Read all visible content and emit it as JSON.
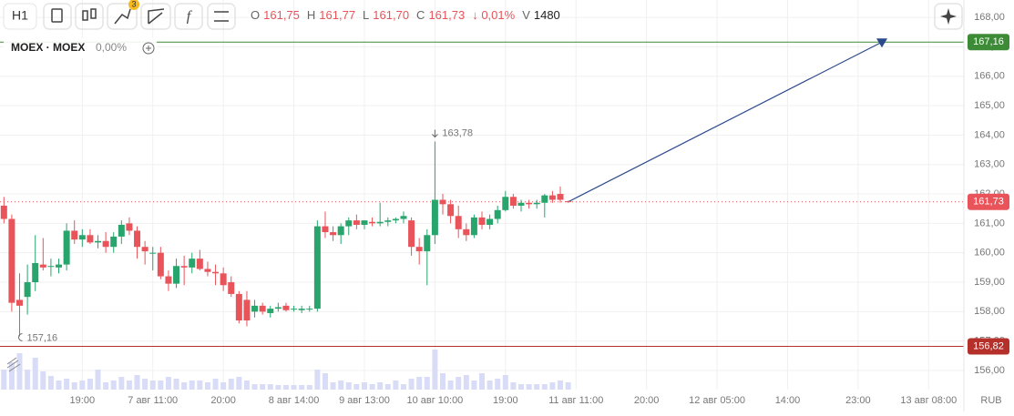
{
  "toolbar": {
    "interval": "H1",
    "badge": "3",
    "ohlc": [
      {
        "key": "O",
        "value": "161,75"
      },
      {
        "key": "H",
        "value": "161,77"
      },
      {
        "key": "L",
        "value": "161,70"
      },
      {
        "key": "C",
        "value": "161,73"
      }
    ],
    "change": "↓ 0,01%",
    "volume_key": "V",
    "volume": "1480"
  },
  "legend": {
    "symbol": "MOEX · MOEX",
    "change": "0,00%"
  },
  "currency": "RUB",
  "chart_data": {
    "type": "candlestick",
    "categories": [
      null,
      null,
      null,
      null,
      null,
      null,
      null,
      null,
      null,
      null,
      "19:00",
      null,
      null,
      null,
      null,
      null,
      null,
      null,
      null,
      "7 авг 11:00",
      null,
      null,
      null,
      null,
      null,
      null,
      null,
      null,
      "20:00",
      null,
      null,
      null,
      null,
      null,
      null,
      null,
      null,
      "8 авг 14:00",
      null,
      null,
      null,
      null,
      null,
      null,
      null,
      null,
      "9 авг 13:00",
      null,
      null,
      null,
      null,
      null,
      null,
      null,
      null,
      "10 авг 10:00",
      null,
      null,
      null,
      null,
      null,
      null,
      null,
      null,
      "19:00",
      null,
      null,
      null,
      null,
      null,
      null,
      null,
      null,
      "11 авг 11:00",
      null,
      null,
      null,
      null,
      null,
      null,
      null,
      null,
      "20:00",
      null,
      null,
      null,
      null,
      null,
      null,
      null,
      null,
      "12 авг 05:00",
      null,
      null,
      null,
      null,
      null,
      null,
      null,
      null,
      "14:00",
      null,
      null,
      null,
      null,
      null,
      null,
      null,
      null,
      "23:00",
      null,
      null,
      null,
      null,
      null,
      null,
      null,
      null,
      "13 авг 08:00",
      null,
      null,
      null,
      null
    ],
    "open": [
      161.6,
      161.15,
      158.4,
      158.5,
      159.0,
      159.6,
      159.55,
      159.5,
      159.6,
      160.75,
      160.45,
      160.6,
      160.35,
      160.4,
      160.2,
      160.55,
      161.0,
      160.75,
      160.2,
      160.0,
      160.0,
      159.2,
      158.95,
      159.55,
      159.5,
      159.8,
      159.45,
      159.35,
      159.3,
      159.0,
      158.6,
      158.4,
      158.0,
      158.2,
      157.95,
      158.1,
      158.2,
      158.1,
      158.05,
      158.1,
      158.1,
      160.9,
      160.7,
      160.6,
      160.9,
      161.1,
      160.95,
      161.05,
      161.0,
      161.05,
      161.1,
      161.15,
      161.1,
      160.2,
      160.05,
      160.6,
      161.8,
      161.65,
      161.25,
      160.8,
      160.6,
      161.2,
      160.95,
      161.15,
      161.45,
      161.9,
      161.6,
      161.7,
      161.65,
      161.7,
      161.95,
      162.0,
      161.75,
      null,
      null,
      null,
      null,
      null,
      null,
      null,
      null,
      null,
      null,
      null,
      null,
      null,
      null,
      null,
      null,
      null,
      null,
      null,
      null,
      null,
      null,
      null,
      null,
      null,
      null,
      null,
      null,
      null,
      null,
      null,
      null,
      null,
      null,
      null,
      null,
      null,
      null,
      null,
      null,
      null,
      null,
      null,
      null,
      null,
      null,
      null,
      null,
      null,
      null
    ],
    "high": [
      161.9,
      161.3,
      159.3,
      159.6,
      160.6,
      160.5,
      159.8,
      159.8,
      161.0,
      161.1,
      160.8,
      160.8,
      160.6,
      160.7,
      160.7,
      161.1,
      161.2,
      160.9,
      160.4,
      160.2,
      160.2,
      159.4,
      159.8,
      159.9,
      160.0,
      160.1,
      159.7,
      159.6,
      159.5,
      159.2,
      158.7,
      158.7,
      158.4,
      158.3,
      158.2,
      158.3,
      158.3,
      158.2,
      158.2,
      158.2,
      161.1,
      161.4,
      160.9,
      161.0,
      161.2,
      161.3,
      161.1,
      161.2,
      161.7,
      161.2,
      161.2,
      161.4,
      161.2,
      160.5,
      160.8,
      163.78,
      162.0,
      161.8,
      161.6,
      161.0,
      161.3,
      161.4,
      161.3,
      161.6,
      162.1,
      162.0,
      161.8,
      161.8,
      161.8,
      162.0,
      162.1,
      162.25,
      161.77,
      null,
      null,
      null,
      null,
      null,
      null,
      null,
      null,
      null,
      null,
      null,
      null,
      null,
      null,
      null,
      null,
      null,
      null,
      null,
      null,
      null,
      null,
      null,
      null,
      null,
      null,
      null,
      null,
      null,
      null,
      null,
      null,
      null,
      null,
      null,
      null,
      null,
      null,
      null,
      null,
      null,
      null,
      null,
      null,
      null,
      null,
      null,
      null,
      null,
      null
    ],
    "low": [
      161.0,
      158.0,
      157.16,
      157.9,
      158.7,
      159.4,
      159.2,
      159.3,
      159.4,
      160.3,
      160.2,
      160.3,
      160.15,
      160.0,
      160.0,
      160.3,
      160.6,
      159.8,
      159.6,
      159.4,
      159.1,
      158.7,
      158.8,
      158.9,
      159.3,
      159.4,
      159.2,
      158.9,
      158.7,
      158.5,
      157.6,
      157.5,
      157.8,
      157.9,
      157.8,
      158.0,
      158.0,
      158.0,
      157.95,
      158.0,
      158.0,
      160.5,
      160.4,
      160.3,
      160.6,
      160.8,
      160.8,
      160.9,
      160.9,
      160.9,
      161.0,
      161.0,
      159.9,
      159.6,
      158.9,
      160.3,
      161.3,
      161.0,
      160.5,
      160.4,
      160.5,
      160.8,
      160.8,
      161.0,
      161.4,
      161.5,
      161.4,
      161.5,
      161.5,
      161.2,
      161.7,
      161.7,
      161.7,
      null,
      null,
      null,
      null,
      null,
      null,
      null,
      null,
      null,
      null,
      null,
      null,
      null,
      null,
      null,
      null,
      null,
      null,
      null,
      null,
      null,
      null,
      null,
      null,
      null,
      null,
      null,
      null,
      null,
      null,
      null,
      null,
      null,
      null,
      null,
      null,
      null,
      null,
      null,
      null,
      null,
      null,
      null,
      null,
      null,
      null,
      null,
      null,
      null,
      null
    ],
    "close": [
      161.15,
      158.3,
      158.2,
      159.0,
      159.65,
      159.5,
      159.55,
      159.6,
      160.75,
      160.45,
      160.6,
      160.35,
      160.4,
      160.2,
      160.55,
      160.95,
      160.75,
      160.2,
      160.05,
      160.0,
      159.2,
      158.95,
      159.55,
      159.5,
      159.8,
      159.45,
      159.35,
      159.3,
      158.9,
      158.6,
      157.7,
      157.7,
      158.2,
      158.0,
      158.1,
      158.15,
      158.05,
      158.1,
      158.1,
      158.1,
      160.9,
      160.7,
      160.6,
      160.9,
      161.1,
      160.95,
      161.1,
      161.0,
      161.05,
      161.1,
      161.15,
      161.25,
      160.2,
      160.05,
      160.6,
      161.8,
      161.65,
      161.25,
      160.8,
      160.6,
      161.2,
      160.95,
      161.15,
      161.45,
      161.9,
      161.6,
      161.7,
      161.65,
      161.7,
      161.95,
      161.8,
      161.8,
      161.73,
      null,
      null,
      null,
      null,
      null,
      null,
      null,
      null,
      null,
      null,
      null,
      null,
      null,
      null,
      null,
      null,
      null,
      null,
      null,
      null,
      null,
      null,
      null,
      null,
      null,
      null,
      null,
      null,
      null,
      null,
      null,
      null,
      null,
      null,
      null,
      null,
      null,
      null,
      null,
      null,
      null,
      null,
      null,
      null,
      null,
      null,
      null,
      null,
      null,
      null
    ],
    "volume": [
      4070,
      5550,
      7400,
      4070,
      6475,
      3700,
      2775,
      1850,
      2220,
      1480,
      1850,
      2220,
      4070,
      1480,
      1850,
      2590,
      1850,
      2960,
      2220,
      1850,
      1850,
      2590,
      2220,
      1480,
      1850,
      1850,
      1480,
      2220,
      1480,
      2220,
      2590,
      1850,
      1110,
      1110,
      1110,
      925,
      925,
      925,
      925,
      925,
      4070,
      3330,
      1480,
      1850,
      1480,
      1110,
      1480,
      1110,
      1480,
      1110,
      1850,
      1110,
      2220,
      2590,
      2590,
      8140,
      3330,
      1850,
      2590,
      2960,
      1850,
      3330,
      1850,
      2220,
      2960,
      1480,
      1110,
      1110,
      1110,
      1110,
      1480,
      1850,
      1480,
      null,
      null,
      null,
      null,
      null,
      null,
      null,
      null,
      null,
      null,
      null,
      null,
      null,
      null,
      null,
      null,
      null,
      null,
      null,
      null,
      null,
      null,
      null,
      null,
      null,
      null,
      null,
      null,
      null,
      null,
      null,
      null,
      null,
      null,
      null,
      null,
      null,
      null,
      null,
      null,
      null,
      null,
      null,
      null,
      null,
      null,
      null,
      null,
      null,
      null
    ],
    "up_color": "#27a56c",
    "down_color": "#e8545a",
    "volume_color": "#d9dcf6",
    "ylim": [
      155.35,
      168.59
    ],
    "yticks": [
      {
        "value": 156,
        "label": "156,00"
      },
      {
        "value": 157,
        "label": "157,00"
      },
      {
        "value": 158,
        "label": "158,00"
      },
      {
        "value": 159,
        "label": "159,00"
      },
      {
        "value": 160,
        "label": "160,00"
      },
      {
        "value": 161,
        "label": "161,00"
      },
      {
        "value": 162,
        "label": "162,00"
      },
      {
        "value": 163,
        "label": "163,00"
      },
      {
        "value": 164,
        "label": "164,00"
      },
      {
        "value": 165,
        "label": "165,00"
      },
      {
        "value": 166,
        "label": "166,00"
      },
      {
        "value": 167,
        "label": "167,00"
      },
      {
        "value": 168,
        "label": "168,00"
      }
    ],
    "grid": true,
    "levels": [
      {
        "value": 167.16,
        "label": "167,16",
        "color": "#3d8b37"
      },
      {
        "value": 161.73,
        "label": "161,73",
        "color": "#e8545a",
        "dotted": true
      },
      {
        "value": 156.82,
        "label": "156,82",
        "color": "#b5302a"
      }
    ],
    "high_marker": {
      "value": 163.78,
      "label": "163,78"
    },
    "low_marker": {
      "value": 157.16,
      "label": "157,16"
    }
  }
}
